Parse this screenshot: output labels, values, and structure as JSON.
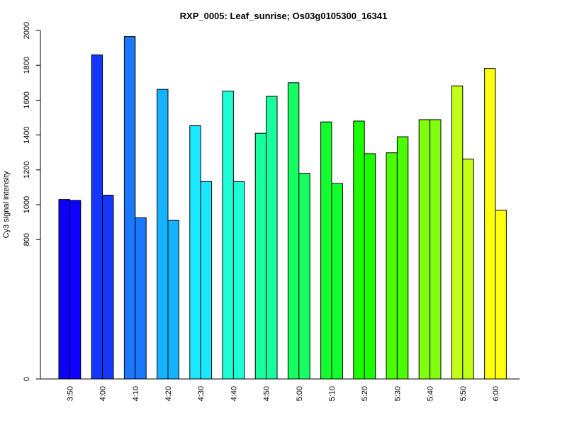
{
  "chart_data": {
    "type": "bar",
    "title": "RXP_0005: Leaf_sunrise; Os03g0105300_16341",
    "ylabel": "Cy3 signal intensity",
    "xlabel": "",
    "ylim": [
      0,
      2000
    ],
    "yticks": [
      0,
      800,
      1000,
      1200,
      1400,
      1600,
      1800,
      2000
    ],
    "categories": [
      "3:50",
      "4:00",
      "4:10",
      "4:20",
      "4:30",
      "4:40",
      "4:50",
      "5:00",
      "5:10",
      "5:20",
      "5:30",
      "5:40",
      "5:50",
      "6:00"
    ],
    "series": [
      {
        "values": [
          1030,
          1860,
          1965,
          1662,
          1453,
          1652,
          1410,
          1700,
          1475,
          1480,
          1298,
          1488,
          1682,
          1782
        ]
      },
      {
        "values": [
          1025,
          1055,
          925,
          910,
          1133,
          1133,
          1622,
          1180,
          1122,
          1293,
          1390,
          1488,
          1262,
          968
        ]
      }
    ],
    "colors": [
      "#0d00ff",
      "#1337ff",
      "#1a78ff",
      "#15b3ff",
      "#1be8ff",
      "#1cffd6",
      "#1aff9e",
      "#16ff63",
      "#13ff2d",
      "#1cff00",
      "#4bff00",
      "#81ff0f",
      "#c2ff17",
      "#ffff10"
    ],
    "grid": false,
    "legend": "none"
  }
}
